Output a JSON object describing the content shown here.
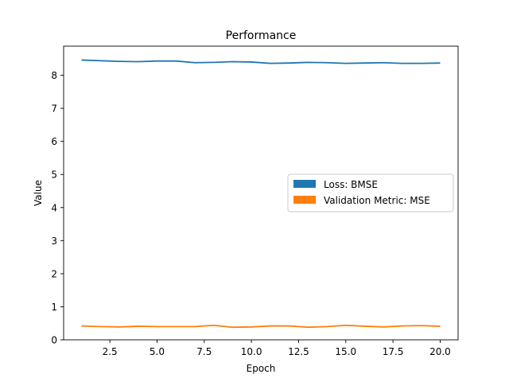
{
  "chart_data": {
    "type": "line",
    "title": "Performance",
    "xlabel": "Epoch",
    "ylabel": "Value",
    "xlim": [
      0.05,
      20.95
    ],
    "ylim": [
      0,
      8.88
    ],
    "xticks": [
      2.5,
      5.0,
      7.5,
      10.0,
      12.5,
      15.0,
      17.5,
      20.0
    ],
    "xtick_labels": [
      "2.5",
      "5.0",
      "7.5",
      "10.0",
      "12.5",
      "15.0",
      "17.5",
      "20.0"
    ],
    "yticks": [
      0,
      1,
      2,
      3,
      4,
      5,
      6,
      7,
      8
    ],
    "ytick_labels": [
      "0",
      "1",
      "2",
      "3",
      "4",
      "5",
      "6",
      "7",
      "8"
    ],
    "grid": false,
    "legend_position": "center-right",
    "x": [
      1,
      2,
      3,
      4,
      5,
      6,
      7,
      8,
      9,
      10,
      11,
      12,
      13,
      14,
      15,
      16,
      17,
      18,
      19,
      20
    ],
    "series": [
      {
        "name": "Loss: BMSE",
        "color": "#1f77b4",
        "values": [
          8.46,
          8.44,
          8.42,
          8.41,
          8.43,
          8.43,
          8.38,
          8.39,
          8.41,
          8.4,
          8.36,
          8.37,
          8.39,
          8.38,
          8.36,
          8.37,
          8.38,
          8.36,
          8.36,
          8.37
        ]
      },
      {
        "name": "Validation Metric: MSE",
        "color": "#ff7f0e",
        "values": [
          0.42,
          0.4,
          0.39,
          0.41,
          0.4,
          0.4,
          0.4,
          0.44,
          0.38,
          0.39,
          0.42,
          0.42,
          0.38,
          0.4,
          0.44,
          0.41,
          0.39,
          0.42,
          0.43,
          0.41
        ]
      }
    ]
  }
}
